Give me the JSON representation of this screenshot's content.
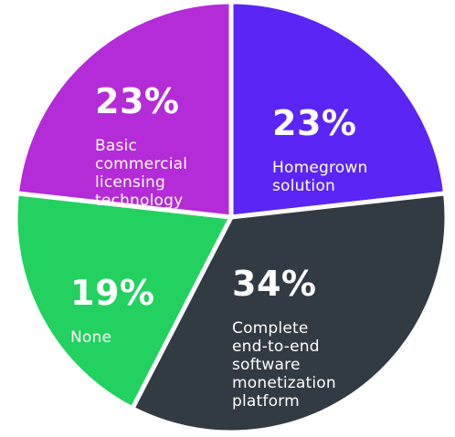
{
  "chart_data": {
    "type": "pie",
    "title": "",
    "slices": [
      {
        "label": "Homegrown solution",
        "value": 23,
        "value_label": "23%",
        "color": "#5b25f5"
      },
      {
        "label": "Complete end-to-end software monetization platform",
        "value": 34,
        "value_label": "34%",
        "color": "#323a44"
      },
      {
        "label": "None",
        "value": 19,
        "value_label": "19%",
        "color": "#22d160"
      },
      {
        "label": "Basic commercial licensing technology",
        "value": 23,
        "value_label": "23%",
        "color": "#b42bd8"
      }
    ],
    "display_lines": [
      "Homegrown\nsolution",
      "Complete\nend-to-end\nsoftware\nmonetization\nplatform",
      "None",
      "Basic\ncommercial\nlicensing\ntechnology"
    ],
    "separator_color": "#ffffff",
    "start": "top, clockwise"
  }
}
